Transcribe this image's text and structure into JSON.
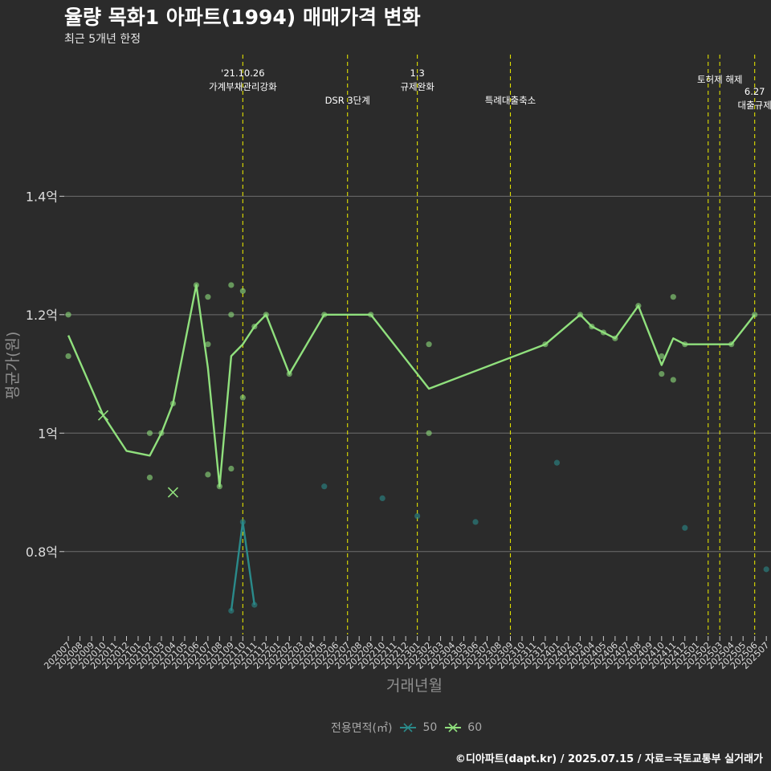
{
  "title": "율량 목화1 아파트(1994) 매매가격 변화",
  "subtitle": "최근 5개년 한정",
  "caption": "©디아파트(dapt.kr) / 2025.07.15 / 자료=국토교통부 실거래가",
  "legend": {
    "title": "전용면적(㎡)",
    "items": [
      {
        "label": "50",
        "color": "#2a8a8a"
      },
      {
        "label": "60",
        "color": "#90e07d"
      }
    ]
  },
  "chart_data": {
    "type": "line",
    "xlabel": "거래년월",
    "ylabel": "평균가(원)",
    "ylim": [
      0.66,
      1.65
    ],
    "yticks": [
      0.8,
      1.0,
      1.2,
      1.4
    ],
    "ytick_labels": [
      "0.8억",
      "1억",
      "1.2억",
      "1.4억"
    ],
    "grid": true,
    "categories": [
      "202007",
      "202008",
      "202009",
      "202010",
      "202011",
      "202012",
      "202101",
      "202102",
      "202103",
      "202104",
      "202105",
      "202106",
      "202107",
      "202108",
      "202109",
      "202110",
      "202111",
      "202112",
      "202201",
      "202202",
      "202203",
      "202204",
      "202205",
      "202206",
      "202207",
      "202208",
      "202209",
      "202210",
      "202211",
      "202212",
      "202301",
      "202302",
      "202303",
      "202304",
      "202305",
      "202306",
      "202307",
      "202308",
      "202309",
      "202310",
      "202311",
      "202312",
      "202401",
      "202402",
      "202403",
      "202404",
      "202405",
      "202406",
      "202407",
      "202408",
      "202409",
      "202410",
      "202411",
      "202412",
      "202501",
      "202502",
      "202503",
      "202504",
      "202505",
      "202506",
      "202507"
    ],
    "series": [
      {
        "name": "50",
        "color": "#2a8a8a",
        "line": [
          [
            "202109",
            0.7
          ],
          [
            "202110",
            0.85
          ],
          [
            "202111",
            0.71
          ]
        ],
        "points": [
          [
            "202109",
            0.7
          ],
          [
            "202110",
            0.85
          ],
          [
            "202111",
            0.71
          ],
          [
            "202205",
            0.91
          ],
          [
            "202210",
            0.89
          ],
          [
            "202301",
            0.86
          ],
          [
            "202306",
            0.85
          ],
          [
            "202401",
            0.95
          ],
          [
            "202412",
            0.84
          ],
          [
            "202507",
            0.77
          ]
        ]
      },
      {
        "name": "60",
        "color": "#90e07d",
        "line": [
          [
            "202007",
            1.165
          ],
          [
            "202010",
            1.03
          ],
          [
            "202012",
            0.97
          ],
          [
            "202102",
            0.962
          ],
          [
            "202103",
            1.0
          ],
          [
            "202104",
            1.05
          ],
          [
            "202106",
            1.25
          ],
          [
            "202107",
            1.11
          ],
          [
            "202108",
            0.91
          ],
          [
            "202109",
            1.13
          ],
          [
            "202110",
            1.15
          ],
          [
            "202111",
            1.18
          ],
          [
            "202112",
            1.2
          ],
          [
            "202202",
            1.1
          ],
          [
            "202205",
            1.2
          ],
          [
            "202209",
            1.2
          ],
          [
            "202302",
            1.075
          ],
          [
            "202312",
            1.15
          ],
          [
            "202403",
            1.2
          ],
          [
            "202404",
            1.18
          ],
          [
            "202405",
            1.17
          ],
          [
            "202406",
            1.16
          ],
          [
            "202408",
            1.215
          ],
          [
            "202410",
            1.115
          ],
          [
            "202411",
            1.16
          ],
          [
            "202412",
            1.15
          ],
          [
            "202504",
            1.15
          ],
          [
            "202506",
            1.2
          ]
        ],
        "points": [
          [
            "202007",
            1.2
          ],
          [
            "202007",
            1.13
          ],
          [
            "202102",
            1.0
          ],
          [
            "202102",
            0.925
          ],
          [
            "202103",
            1.0
          ],
          [
            "202104",
            1.05
          ],
          [
            "202106",
            1.25
          ],
          [
            "202107",
            1.23
          ],
          [
            "202107",
            1.15
          ],
          [
            "202107",
            0.93
          ],
          [
            "202108",
            0.91
          ],
          [
            "202109",
            1.25
          ],
          [
            "202109",
            1.2
          ],
          [
            "202109",
            0.94
          ],
          [
            "202110",
            1.24
          ],
          [
            "202110",
            1.06
          ],
          [
            "202111",
            1.18
          ],
          [
            "202112",
            1.2
          ],
          [
            "202202",
            1.1
          ],
          [
            "202205",
            1.2
          ],
          [
            "202209",
            1.2
          ],
          [
            "202302",
            1.15
          ],
          [
            "202302",
            1.0
          ],
          [
            "202312",
            1.15
          ],
          [
            "202403",
            1.2
          ],
          [
            "202404",
            1.18
          ],
          [
            "202405",
            1.17
          ],
          [
            "202406",
            1.16
          ],
          [
            "202408",
            1.215
          ],
          [
            "202410",
            1.13
          ],
          [
            "202410",
            1.1
          ],
          [
            "202411",
            1.23
          ],
          [
            "202411",
            1.09
          ],
          [
            "202412",
            1.15
          ],
          [
            "202504",
            1.15
          ],
          [
            "202506",
            1.2
          ]
        ],
        "cross_markers": [
          [
            "202010",
            1.03
          ],
          [
            "202104",
            0.9
          ]
        ]
      }
    ],
    "annotations": [
      {
        "x": "202110",
        "lines": [
          "'21.10.26",
          "가계부채관리강화"
        ]
      },
      {
        "x": "202207",
        "lines": [
          "DSR 3단계"
        ]
      },
      {
        "x": "202301",
        "lines": [
          "1.3",
          "규제완화"
        ]
      },
      {
        "x": "202309",
        "lines": [
          "특례대출축소"
        ]
      },
      {
        "x": "202502",
        "lines": []
      },
      {
        "x": "202503",
        "lines": [
          "토허제 해제"
        ]
      },
      {
        "x": "202506",
        "lines": [
          "6.27",
          "대출규제"
        ]
      }
    ]
  }
}
